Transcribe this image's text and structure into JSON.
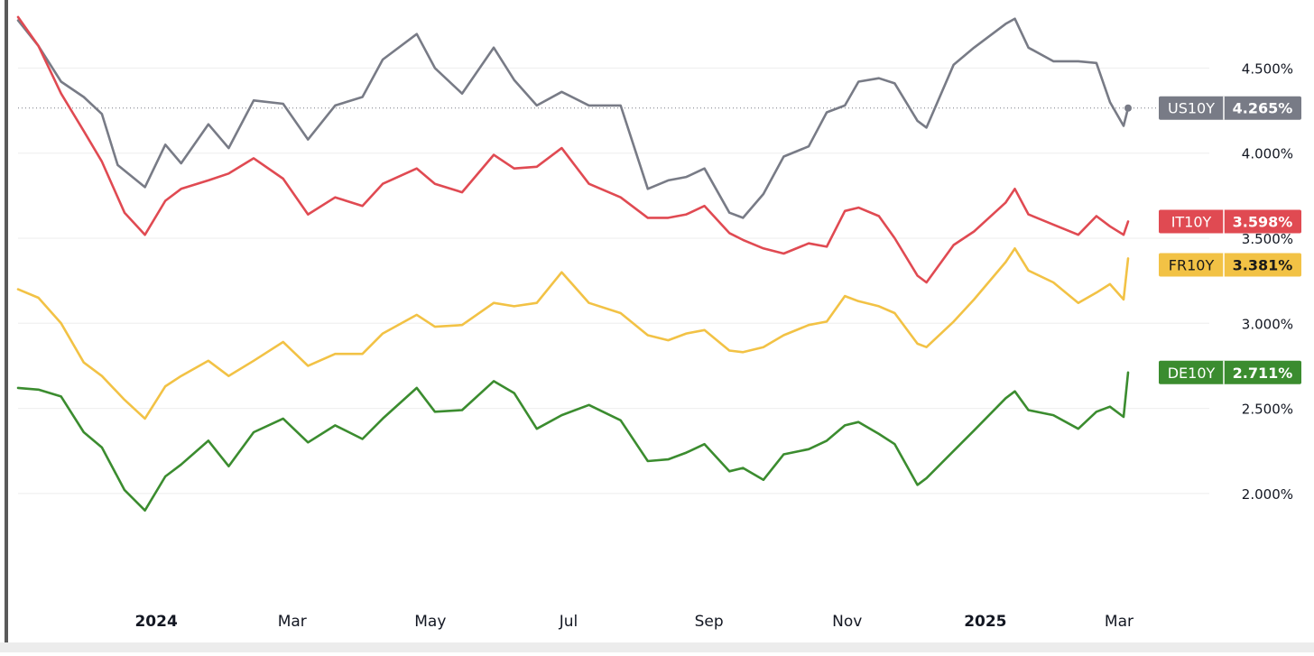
{
  "chart_data": {
    "type": "line",
    "title": "",
    "xlabel": "",
    "ylabel": "",
    "x_range": [
      "2023-11-01",
      "2025-03-05"
    ],
    "ylim": [
      1.4,
      4.9
    ],
    "grid": "horizontal",
    "y_ticks": [
      {
        "value": 4.5,
        "label": "4.500%"
      },
      {
        "value": 4.0,
        "label": "4.000%"
      },
      {
        "value": 3.5,
        "label": "3.500%"
      },
      {
        "value": 3.0,
        "label": "3.000%"
      },
      {
        "value": 2.5,
        "label": "2.500%"
      },
      {
        "value": 2.0,
        "label": "2.000%"
      }
    ],
    "x_ticks": [
      {
        "date": "2024-01-01",
        "label": "2024",
        "bold": true
      },
      {
        "date": "2024-03-01",
        "label": "Mar",
        "bold": false
      },
      {
        "date": "2024-05-01",
        "label": "May",
        "bold": false
      },
      {
        "date": "2024-07-01",
        "label": "Jul",
        "bold": false
      },
      {
        "date": "2024-09-01",
        "label": "Sep",
        "bold": false
      },
      {
        "date": "2024-11-01",
        "label": "Nov",
        "bold": false
      },
      {
        "date": "2025-01-01",
        "label": "2025",
        "bold": true
      },
      {
        "date": "2025-03-01",
        "label": "Mar",
        "bold": false
      }
    ],
    "reference_line": {
      "series": "US10Y",
      "value": 4.265
    },
    "series": [
      {
        "name": "US10Y",
        "color": "#787b86",
        "last": "4.265%",
        "points": [
          [
            "2023-11-01",
            4.78
          ],
          [
            "2023-11-10",
            4.63
          ],
          [
            "2023-11-20",
            4.42
          ],
          [
            "2023-11-30",
            4.33
          ],
          [
            "2023-12-08",
            4.23
          ],
          [
            "2023-12-15",
            3.93
          ],
          [
            "2023-12-27",
            3.8
          ],
          [
            "2024-01-05",
            4.05
          ],
          [
            "2024-01-12",
            3.94
          ],
          [
            "2024-01-24",
            4.17
          ],
          [
            "2024-02-02",
            4.03
          ],
          [
            "2024-02-13",
            4.31
          ],
          [
            "2024-02-26",
            4.29
          ],
          [
            "2024-03-08",
            4.08
          ],
          [
            "2024-03-20",
            4.28
          ],
          [
            "2024-04-01",
            4.33
          ],
          [
            "2024-04-10",
            4.55
          ],
          [
            "2024-04-25",
            4.7
          ],
          [
            "2024-05-03",
            4.5
          ],
          [
            "2024-05-15",
            4.35
          ],
          [
            "2024-05-29",
            4.62
          ],
          [
            "2024-06-07",
            4.43
          ],
          [
            "2024-06-17",
            4.28
          ],
          [
            "2024-06-28",
            4.36
          ],
          [
            "2024-07-10",
            4.28
          ],
          [
            "2024-07-24",
            4.28
          ],
          [
            "2024-08-05",
            3.79
          ],
          [
            "2024-08-14",
            3.84
          ],
          [
            "2024-08-22",
            3.86
          ],
          [
            "2024-08-30",
            3.91
          ],
          [
            "2024-09-10",
            3.65
          ],
          [
            "2024-09-16",
            3.62
          ],
          [
            "2024-09-25",
            3.76
          ],
          [
            "2024-10-04",
            3.98
          ],
          [
            "2024-10-15",
            4.04
          ],
          [
            "2024-10-23",
            4.24
          ],
          [
            "2024-10-31",
            4.28
          ],
          [
            "2024-11-06",
            4.42
          ],
          [
            "2024-11-15",
            4.44
          ],
          [
            "2024-11-22",
            4.41
          ],
          [
            "2024-12-02",
            4.19
          ],
          [
            "2024-12-06",
            4.15
          ],
          [
            "2024-12-18",
            4.52
          ],
          [
            "2024-12-27",
            4.62
          ],
          [
            "2025-01-10",
            4.76
          ],
          [
            "2025-01-14",
            4.79
          ],
          [
            "2025-01-20",
            4.62
          ],
          [
            "2025-01-31",
            4.54
          ],
          [
            "2025-02-11",
            4.54
          ],
          [
            "2025-02-19",
            4.53
          ],
          [
            "2025-02-25",
            4.3
          ],
          [
            "2025-03-03",
            4.16
          ],
          [
            "2025-03-05",
            4.265
          ]
        ]
      },
      {
        "name": "IT10Y",
        "color": "#e04a52",
        "last": "3.598%",
        "points": [
          [
            "2023-11-01",
            4.8
          ],
          [
            "2023-11-10",
            4.63
          ],
          [
            "2023-11-20",
            4.35
          ],
          [
            "2023-11-30",
            4.13
          ],
          [
            "2023-12-08",
            3.95
          ],
          [
            "2023-12-18",
            3.65
          ],
          [
            "2023-12-27",
            3.52
          ],
          [
            "2024-01-05",
            3.72
          ],
          [
            "2024-01-12",
            3.79
          ],
          [
            "2024-01-24",
            3.84
          ],
          [
            "2024-02-02",
            3.88
          ],
          [
            "2024-02-13",
            3.97
          ],
          [
            "2024-02-26",
            3.85
          ],
          [
            "2024-03-08",
            3.64
          ],
          [
            "2024-03-20",
            3.74
          ],
          [
            "2024-04-01",
            3.69
          ],
          [
            "2024-04-10",
            3.82
          ],
          [
            "2024-04-25",
            3.91
          ],
          [
            "2024-05-03",
            3.82
          ],
          [
            "2024-05-15",
            3.77
          ],
          [
            "2024-05-29",
            3.99
          ],
          [
            "2024-06-07",
            3.91
          ],
          [
            "2024-06-17",
            3.92
          ],
          [
            "2024-06-28",
            4.03
          ],
          [
            "2024-07-10",
            3.82
          ],
          [
            "2024-07-24",
            3.74
          ],
          [
            "2024-08-05",
            3.62
          ],
          [
            "2024-08-14",
            3.62
          ],
          [
            "2024-08-22",
            3.64
          ],
          [
            "2024-08-30",
            3.69
          ],
          [
            "2024-09-10",
            3.53
          ],
          [
            "2024-09-16",
            3.49
          ],
          [
            "2024-09-25",
            3.44
          ],
          [
            "2024-10-04",
            3.41
          ],
          [
            "2024-10-15",
            3.47
          ],
          [
            "2024-10-23",
            3.45
          ],
          [
            "2024-10-31",
            3.66
          ],
          [
            "2024-11-06",
            3.68
          ],
          [
            "2024-11-15",
            3.63
          ],
          [
            "2024-11-22",
            3.5
          ],
          [
            "2024-12-02",
            3.28
          ],
          [
            "2024-12-06",
            3.24
          ],
          [
            "2024-12-18",
            3.46
          ],
          [
            "2024-12-27",
            3.54
          ],
          [
            "2025-01-10",
            3.71
          ],
          [
            "2025-01-14",
            3.79
          ],
          [
            "2025-01-20",
            3.64
          ],
          [
            "2025-01-31",
            3.58
          ],
          [
            "2025-02-11",
            3.52
          ],
          [
            "2025-02-19",
            3.63
          ],
          [
            "2025-02-25",
            3.57
          ],
          [
            "2025-03-03",
            3.52
          ],
          [
            "2025-03-05",
            3.598
          ]
        ]
      },
      {
        "name": "FR10Y",
        "color": "#f2c245",
        "last": "3.381%",
        "points": [
          [
            "2023-11-01",
            3.2
          ],
          [
            "2023-11-10",
            3.15
          ],
          [
            "2023-11-20",
            3.0
          ],
          [
            "2023-11-30",
            2.77
          ],
          [
            "2023-12-08",
            2.69
          ],
          [
            "2023-12-18",
            2.55
          ],
          [
            "2023-12-27",
            2.44
          ],
          [
            "2024-01-05",
            2.63
          ],
          [
            "2024-01-12",
            2.69
          ],
          [
            "2024-01-24",
            2.78
          ],
          [
            "2024-02-02",
            2.69
          ],
          [
            "2024-02-13",
            2.78
          ],
          [
            "2024-02-26",
            2.89
          ],
          [
            "2024-03-08",
            2.75
          ],
          [
            "2024-03-20",
            2.82
          ],
          [
            "2024-04-01",
            2.82
          ],
          [
            "2024-04-10",
            2.94
          ],
          [
            "2024-04-25",
            3.05
          ],
          [
            "2024-05-03",
            2.98
          ],
          [
            "2024-05-15",
            2.99
          ],
          [
            "2024-05-29",
            3.12
          ],
          [
            "2024-06-07",
            3.1
          ],
          [
            "2024-06-17",
            3.12
          ],
          [
            "2024-06-28",
            3.3
          ],
          [
            "2024-07-10",
            3.12
          ],
          [
            "2024-07-24",
            3.06
          ],
          [
            "2024-08-05",
            2.93
          ],
          [
            "2024-08-14",
            2.9
          ],
          [
            "2024-08-22",
            2.94
          ],
          [
            "2024-08-30",
            2.96
          ],
          [
            "2024-09-10",
            2.84
          ],
          [
            "2024-09-16",
            2.83
          ],
          [
            "2024-09-25",
            2.86
          ],
          [
            "2024-10-04",
            2.93
          ],
          [
            "2024-10-15",
            2.99
          ],
          [
            "2024-10-23",
            3.01
          ],
          [
            "2024-10-31",
            3.16
          ],
          [
            "2024-11-06",
            3.13
          ],
          [
            "2024-11-15",
            3.1
          ],
          [
            "2024-11-22",
            3.06
          ],
          [
            "2024-12-02",
            2.88
          ],
          [
            "2024-12-06",
            2.86
          ],
          [
            "2024-12-18",
            3.01
          ],
          [
            "2024-12-27",
            3.14
          ],
          [
            "2025-01-10",
            3.36
          ],
          [
            "2025-01-14",
            3.44
          ],
          [
            "2025-01-20",
            3.31
          ],
          [
            "2025-01-31",
            3.24
          ],
          [
            "2025-02-11",
            3.12
          ],
          [
            "2025-02-19",
            3.18
          ],
          [
            "2025-02-25",
            3.23
          ],
          [
            "2025-03-03",
            3.14
          ],
          [
            "2025-03-05",
            3.381
          ]
        ]
      },
      {
        "name": "DE10Y",
        "color": "#3b8c2f",
        "last": "2.711%",
        "points": [
          [
            "2023-11-01",
            2.62
          ],
          [
            "2023-11-10",
            2.61
          ],
          [
            "2023-11-20",
            2.57
          ],
          [
            "2023-11-30",
            2.36
          ],
          [
            "2023-12-08",
            2.27
          ],
          [
            "2023-12-18",
            2.02
          ],
          [
            "2023-12-27",
            1.9
          ],
          [
            "2024-01-05",
            2.1
          ],
          [
            "2024-01-12",
            2.17
          ],
          [
            "2024-01-24",
            2.31
          ],
          [
            "2024-02-02",
            2.16
          ],
          [
            "2024-02-13",
            2.36
          ],
          [
            "2024-02-26",
            2.44
          ],
          [
            "2024-03-08",
            2.3
          ],
          [
            "2024-03-20",
            2.4
          ],
          [
            "2024-04-01",
            2.32
          ],
          [
            "2024-04-10",
            2.44
          ],
          [
            "2024-04-25",
            2.62
          ],
          [
            "2024-05-03",
            2.48
          ],
          [
            "2024-05-15",
            2.49
          ],
          [
            "2024-05-29",
            2.66
          ],
          [
            "2024-06-07",
            2.59
          ],
          [
            "2024-06-17",
            2.38
          ],
          [
            "2024-06-28",
            2.46
          ],
          [
            "2024-07-10",
            2.52
          ],
          [
            "2024-07-24",
            2.43
          ],
          [
            "2024-08-05",
            2.19
          ],
          [
            "2024-08-14",
            2.2
          ],
          [
            "2024-08-22",
            2.24
          ],
          [
            "2024-08-30",
            2.29
          ],
          [
            "2024-09-10",
            2.13
          ],
          [
            "2024-09-16",
            2.15
          ],
          [
            "2024-09-25",
            2.08
          ],
          [
            "2024-10-04",
            2.23
          ],
          [
            "2024-10-15",
            2.26
          ],
          [
            "2024-10-23",
            2.31
          ],
          [
            "2024-10-31",
            2.4
          ],
          [
            "2024-11-06",
            2.42
          ],
          [
            "2024-11-15",
            2.35
          ],
          [
            "2024-11-22",
            2.29
          ],
          [
            "2024-12-02",
            2.05
          ],
          [
            "2024-12-06",
            2.09
          ],
          [
            "2024-12-18",
            2.25
          ],
          [
            "2024-12-27",
            2.37
          ],
          [
            "2025-01-10",
            2.56
          ],
          [
            "2025-01-14",
            2.6
          ],
          [
            "2025-01-20",
            2.49
          ],
          [
            "2025-01-31",
            2.46
          ],
          [
            "2025-02-11",
            2.38
          ],
          [
            "2025-02-19",
            2.48
          ],
          [
            "2025-02-25",
            2.51
          ],
          [
            "2025-03-03",
            2.45
          ],
          [
            "2025-03-05",
            2.711
          ]
        ]
      }
    ]
  }
}
